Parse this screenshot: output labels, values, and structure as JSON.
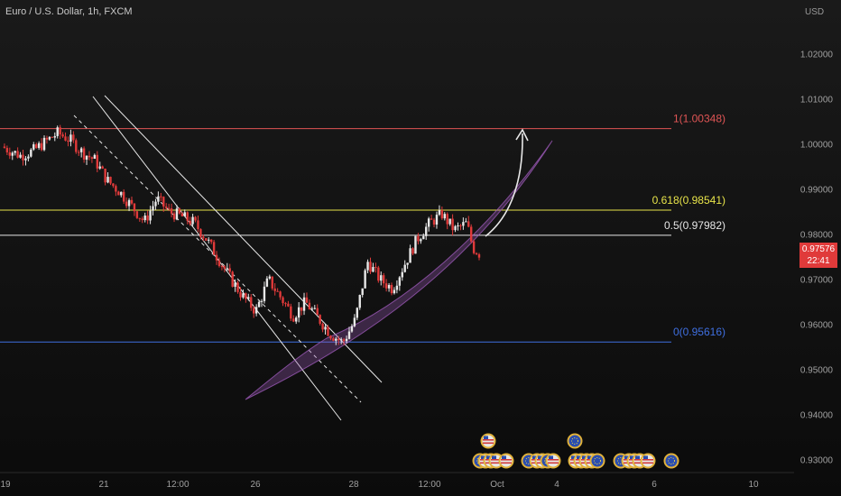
{
  "header": {
    "symbol_title": "Euro / U.S. Dollar, 1h, FXCM",
    "currency": "USD"
  },
  "price_tag": {
    "price": "0.97576",
    "countdown": "22:41",
    "color": "#e03a3a"
  },
  "chart_data": {
    "type": "candlestick",
    "y_axis": {
      "ticks": [
        "1.02000",
        "1.01000",
        "1.00000",
        "0.99000",
        "0.98000",
        "0.97000",
        "0.96000",
        "0.95000",
        "0.94000",
        "0.93000"
      ],
      "tick_values": [
        1.02,
        1.01,
        1.0,
        0.99,
        0.98,
        0.97,
        0.96,
        0.95,
        0.94,
        0.93
      ],
      "range": [
        0.924,
        1.032
      ]
    },
    "x_axis": {
      "ticks": [
        "19",
        "21",
        "12:00",
        "26",
        "28",
        "12:00",
        "Oct",
        "4",
        "6",
        "10"
      ]
    },
    "fib_levels": [
      {
        "label": "1(1.00348)",
        "value": 1.00348,
        "color": "#e05555"
      },
      {
        "label": "0.618(0.98541)",
        "value": 0.98541,
        "color": "#e8e44a"
      },
      {
        "label": "0.5(0.97982)",
        "value": 0.97982,
        "color": "#e6e6e6"
      },
      {
        "label": "0(0.95616)",
        "value": 0.95616,
        "color": "#3f6fe0"
      }
    ],
    "colors": {
      "up": "#e8e8e8",
      "down": "#e03a3a",
      "channel": "#e8e8e8",
      "curve_band": "#9b59b6",
      "arrow": "#e8e8e8"
    },
    "close_path": [
      [
        0,
        0.9995
      ],
      [
        3,
        0.9975
      ],
      [
        5,
        0.9985
      ],
      [
        7,
        1.0005
      ],
      [
        9,
        1.0025
      ],
      [
        11,
        1.001
      ],
      [
        13,
        0.9982
      ],
      [
        15,
        0.9965
      ],
      [
        17,
        0.992
      ],
      [
        19,
        0.9895
      ],
      [
        21,
        0.9862
      ],
      [
        23,
        0.9828
      ],
      [
        25,
        0.988
      ],
      [
        27,
        0.985
      ],
      [
        29,
        0.984
      ],
      [
        31,
        0.9826
      ],
      [
        33,
        0.979
      ],
      [
        35,
        0.9745
      ],
      [
        37,
        0.97
      ],
      [
        39,
        0.966
      ],
      [
        41,
        0.963
      ],
      [
        43,
        0.97
      ],
      [
        45,
        0.966
      ],
      [
        47,
        0.962
      ],
      [
        49,
        0.965
      ],
      [
        51,
        0.9615
      ],
      [
        53,
        0.958
      ],
      [
        55,
        0.956
      ],
      [
        57,
        0.961
      ],
      [
        59,
        0.974
      ],
      [
        61,
        0.97
      ],
      [
        63,
        0.968
      ],
      [
        65,
        0.9735
      ],
      [
        67,
        0.979
      ],
      [
        69,
        0.9825
      ],
      [
        71,
        0.9845
      ],
      [
        73,
        0.981
      ],
      [
        75,
        0.9825
      ],
      [
        76,
        0.977
      ],
      [
        77,
        0.9758
      ]
    ],
    "event_icon_rows": [
      {
        "row": "upper",
        "count": 2
      },
      {
        "row": "lower",
        "count": 18
      }
    ]
  }
}
